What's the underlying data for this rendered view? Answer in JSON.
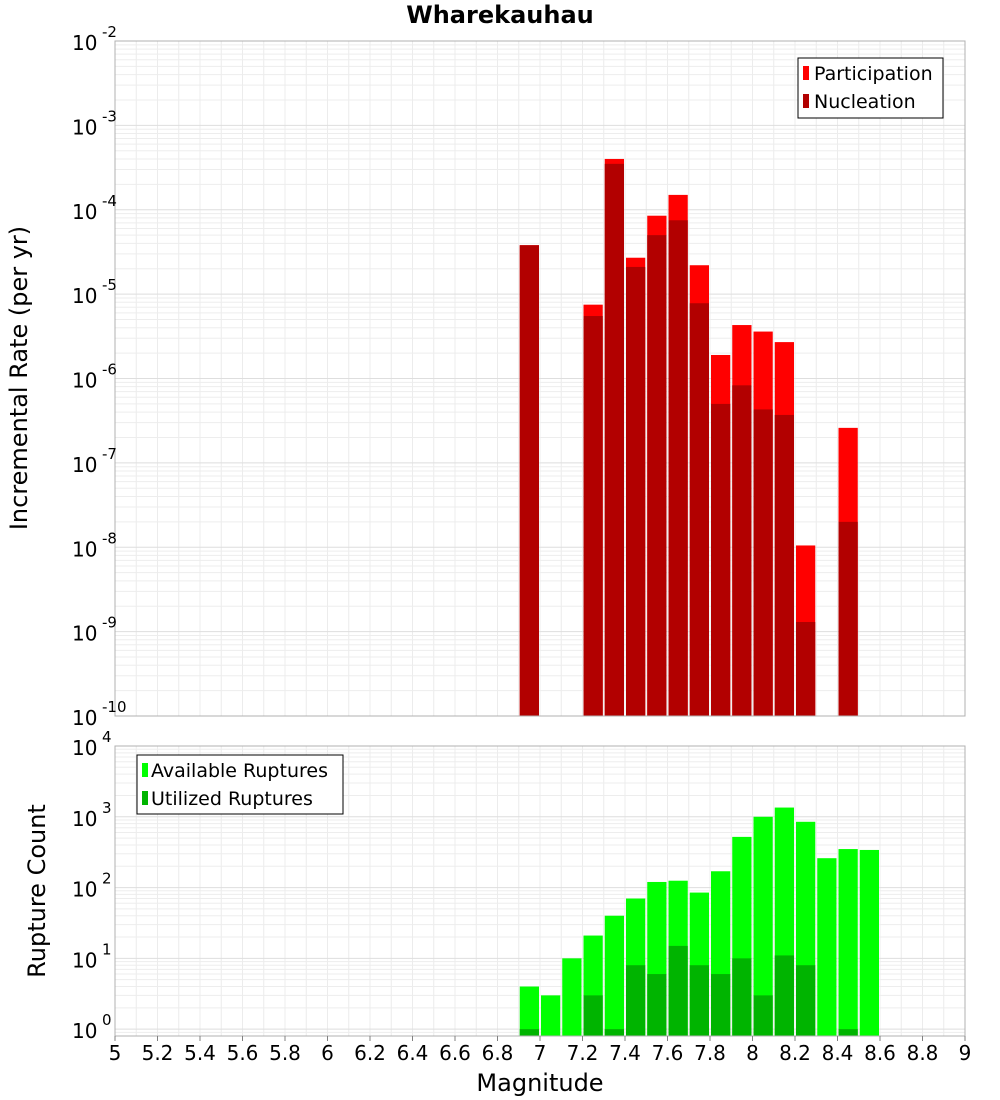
{
  "chart_data": [
    {
      "type": "bar",
      "title": "Wharekauhau",
      "xlabel": "",
      "ylabel": "Incremental Rate (per yr)",
      "xlim": [
        5,
        9
      ],
      "yscale": "log",
      "ylim": [
        1e-10,
        0.01
      ],
      "y_tick_mantissa": "10",
      "y_tick_exponents": [
        "-10",
        "-9",
        "-8",
        "-7",
        "-6",
        "-5",
        "-4",
        "-3",
        "-2"
      ],
      "bar_width": 0.1,
      "legend_position": "top-right",
      "grid": true,
      "series": [
        {
          "name": "Participation",
          "color": "#ff0000",
          "x": [
            6.95,
            7.25,
            7.35,
            7.45,
            7.55,
            7.65,
            7.75,
            7.85,
            7.95,
            8.05,
            8.15,
            8.25,
            8.45
          ],
          "values": [
            3.8e-05,
            7.5e-06,
            0.0004,
            2.7e-05,
            8.5e-05,
            0.00015,
            2.2e-05,
            1.9e-06,
            4.3e-06,
            3.6e-06,
            2.7e-06,
            1.05e-08,
            2.6e-07
          ]
        },
        {
          "name": "Nucleation",
          "color": "#b20000",
          "x": [
            6.95,
            7.25,
            7.35,
            7.45,
            7.55,
            7.65,
            7.75,
            7.85,
            7.95,
            8.05,
            8.15,
            8.25,
            8.45
          ],
          "values": [
            3.8e-05,
            5.5e-06,
            0.00035,
            2.1e-05,
            5e-05,
            7.5e-05,
            7.8e-06,
            5e-07,
            8.3e-07,
            4.3e-07,
            3.7e-07,
            1.3e-09,
            2e-08
          ]
        }
      ]
    },
    {
      "type": "bar",
      "title": "",
      "xlabel": "Magnitude",
      "ylabel": "Rupture Count",
      "xlim": [
        5,
        9
      ],
      "x_ticks": [
        "5",
        "5.2",
        "5.4",
        "5.6",
        "5.8",
        "6",
        "6.2",
        "6.4",
        "6.6",
        "6.8",
        "7",
        "7.2",
        "7.4",
        "7.6",
        "7.8",
        "8",
        "8.2",
        "8.4",
        "8.6",
        "8.8",
        "9"
      ],
      "yscale": "log",
      "ylim": [
        0.8,
        10000
      ],
      "y_tick_mantissa": "10",
      "y_tick_exponents": [
        "0",
        "1",
        "2",
        "3",
        "4"
      ],
      "bar_width": 0.1,
      "legend_position": "top-left",
      "grid": true,
      "series": [
        {
          "name": "Available Ruptures",
          "color": "#00ff00",
          "x": [
            6.95,
            7.05,
            7.15,
            7.25,
            7.35,
            7.45,
            7.55,
            7.65,
            7.75,
            7.85,
            7.95,
            8.05,
            8.15,
            8.25,
            8.35,
            8.45,
            8.55
          ],
          "values": [
            4,
            3,
            10,
            21,
            40,
            70,
            120,
            125,
            85,
            170,
            520,
            1000,
            1350,
            850,
            260,
            350,
            340
          ]
        },
        {
          "name": "Utilized Ruptures",
          "color": "#00b400",
          "x": [
            6.95,
            7.05,
            7.15,
            7.25,
            7.35,
            7.45,
            7.55,
            7.65,
            7.75,
            7.85,
            7.95,
            8.05,
            8.15,
            8.25,
            8.35,
            8.45,
            8.55
          ],
          "values": [
            1,
            0,
            0,
            3,
            1,
            8,
            6,
            15,
            8,
            6,
            10,
            3,
            11,
            8,
            0,
            1,
            0
          ]
        }
      ]
    }
  ]
}
